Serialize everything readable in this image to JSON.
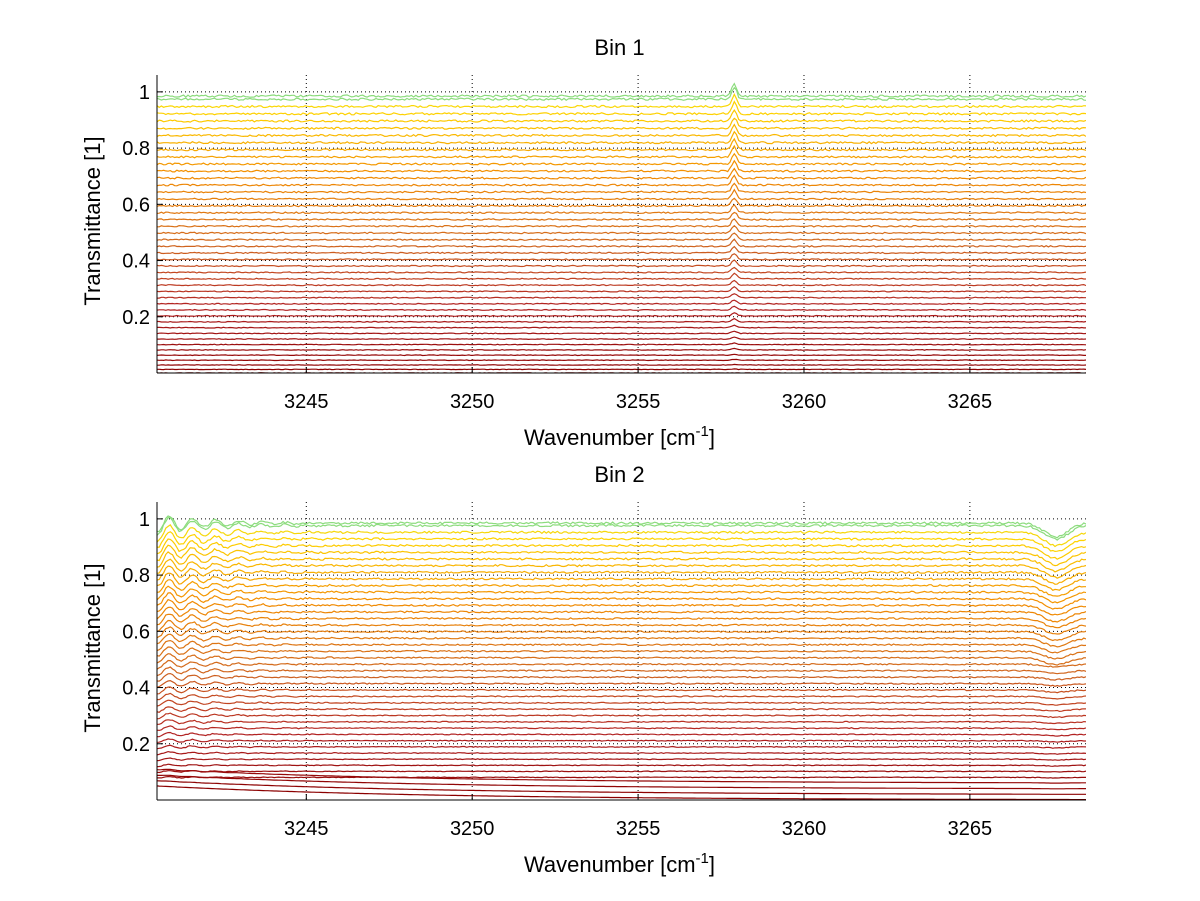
{
  "chart_data": [
    {
      "type": "line",
      "title": "Bin 1",
      "xlabel": "Wavenumber [cm",
      "xlabel_sup": "-1",
      "xlabel_end": "]",
      "ylabel": "Transmittance [1]",
      "xlim": [
        3240.5,
        3268.5
      ],
      "ylim": [
        0,
        1.06
      ],
      "xticks": [
        3245,
        3250,
        3255,
        3260,
        3265
      ],
      "xtick_labels": [
        "3245",
        "3250",
        "3255",
        "3260",
        "3265"
      ],
      "yticks": [
        0.2,
        0.4,
        0.6,
        0.8,
        1
      ],
      "ytick_labels": [
        "0.2",
        "0.4",
        "0.6",
        "0.8",
        "1"
      ],
      "grid": true,
      "series_count": 45,
      "series_level_range": [
        0.0,
        1.0
      ],
      "color_map": [
        "#8b0000",
        "#b22222",
        "#d2691e",
        "#f28c00",
        "#ffd700",
        "#40e0d0"
      ],
      "features": [
        {
          "x": 3257.9,
          "kind": "peak"
        }
      ]
    },
    {
      "type": "line",
      "title": "Bin 2",
      "xlabel": "Wavenumber [cm",
      "xlabel_sup": "-1",
      "xlabel_end": "]",
      "ylabel": "Transmittance [1]",
      "xlim": [
        3240.5,
        3268.5
      ],
      "ylim": [
        0,
        1.06
      ],
      "xticks": [
        3245,
        3250,
        3255,
        3260,
        3265
      ],
      "xtick_labels": [
        "3245",
        "3250",
        "3255",
        "3260",
        "3265"
      ],
      "yticks": [
        0.2,
        0.4,
        0.6,
        0.8,
        1
      ],
      "ytick_labels": [
        "0.2",
        "0.4",
        "0.6",
        "0.8",
        "1"
      ],
      "grid": true,
      "series_count": 45,
      "series_level_range": [
        0.0,
        1.0
      ],
      "color_map": [
        "#8b0000",
        "#b22222",
        "#d2691e",
        "#f28c00",
        "#ffd700",
        "#40e0d0"
      ],
      "features": [
        {
          "x": 3240.7,
          "kind": "oscillation"
        },
        {
          "x": 3267.6,
          "kind": "dip"
        }
      ]
    }
  ]
}
